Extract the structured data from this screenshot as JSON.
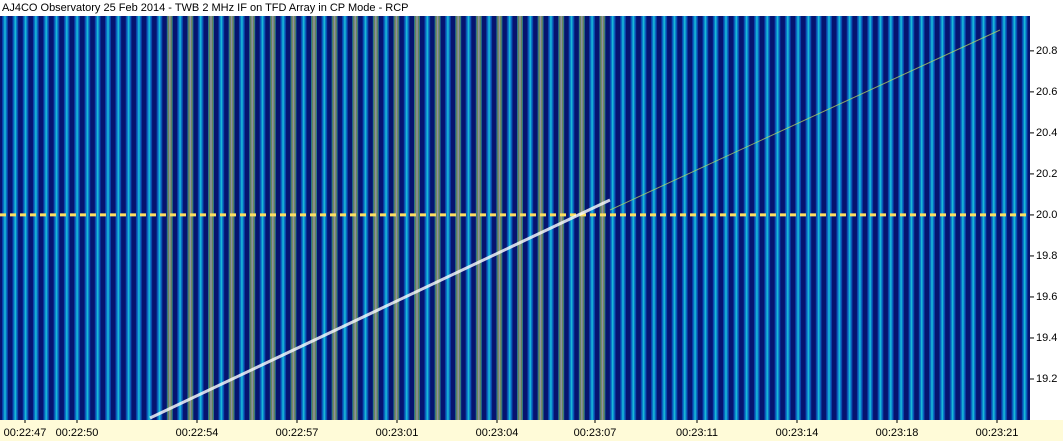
{
  "chart_data": {
    "type": "spectrogram",
    "title": "AJ4CO Observatory 25 Feb 2014 - TWB 2 MHz IF on TFD Array in CP Mode - RCP",
    "categories": [
      "00:22:47",
      "00:22:50",
      "00:22:54",
      "00:22:57",
      "00:23:01",
      "00:23:04",
      "00:23:07",
      "00:23:11",
      "00:23:14",
      "00:23:18",
      "00:23:21"
    ],
    "ylim": [
      19.0,
      20.97
    ],
    "yticks": [
      19.2,
      19.4,
      19.6,
      19.8,
      {
        "value": 20,
        "label": "20.0"
      },
      20.2,
      20.4,
      20.6,
      20.8
    ]
  }
}
